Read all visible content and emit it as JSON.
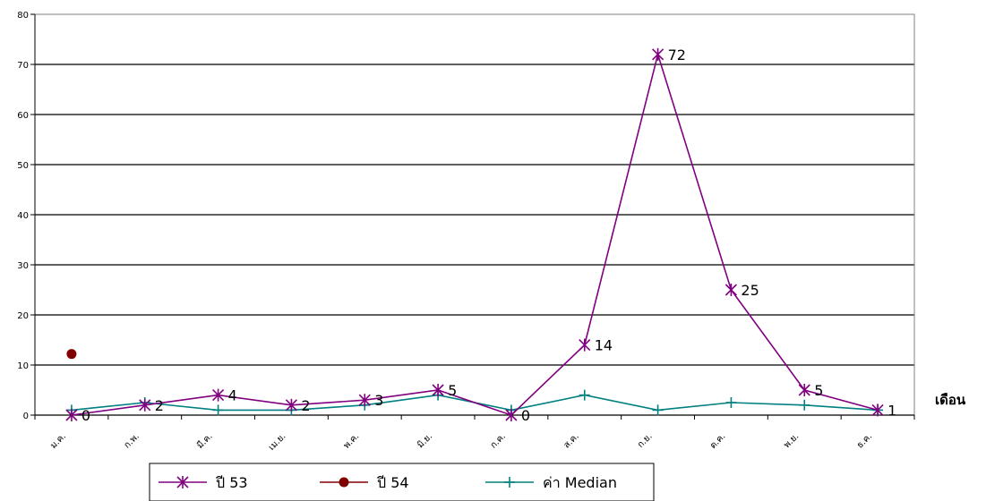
{
  "chart_data": {
    "type": "line",
    "title": "",
    "xlabel": "เดือน",
    "ylabel": "",
    "ylim": [
      0,
      80
    ],
    "yticks": [
      0,
      10,
      20,
      30,
      40,
      50,
      60,
      70,
      80
    ],
    "grid": true,
    "legend_position": "bottom",
    "categories": [
      "ม.ค.",
      "ก.พ.",
      "มี.ค.",
      "เม.ย.",
      "พ.ค.",
      "มิ.ย.",
      "ก.ค.",
      "ส.ค.",
      "ก.ย.",
      "ต.ค.",
      "พ.ย.",
      "ธ.ค."
    ],
    "series": [
      {
        "name": "ปี 53",
        "color": "#800080",
        "marker": "star",
        "values": [
          0,
          2,
          4,
          2,
          3,
          5,
          0,
          14,
          72,
          25,
          5,
          1
        ],
        "data_labels": [
          "0",
          "2",
          "4",
          "2",
          "3",
          "5",
          "0",
          "14",
          "72",
          "25",
          "5",
          "1"
        ]
      },
      {
        "name": "ปี 54",
        "color": "#800000",
        "marker": "circle",
        "values": [
          12.2,
          null,
          null,
          null,
          null,
          null,
          null,
          null,
          null,
          null,
          null,
          null
        ]
      },
      {
        "name": "ค่า Median",
        "color": "#008080",
        "marker": "plus",
        "values": [
          1,
          2.5,
          1,
          1,
          2,
          4,
          1,
          4,
          1,
          2.5,
          2,
          1
        ]
      }
    ]
  }
}
